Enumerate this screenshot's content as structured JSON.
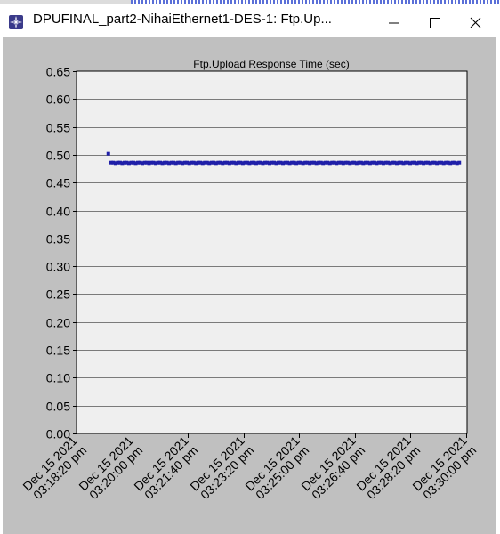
{
  "window": {
    "title": "DPUFINAL_part2-NihaiEthernet1-DES-1: Ftp.Up...",
    "icon": "star-app-icon",
    "controls": [
      "minimize-icon",
      "maximize-icon",
      "close-icon"
    ]
  },
  "chart_data": {
    "type": "scatter",
    "title": "Ftp.Upload Response Time (sec)",
    "xlabel": "",
    "ylabel": "",
    "ylim": [
      0,
      0.65
    ],
    "yticks": [
      "0.00",
      "0.05",
      "0.10",
      "0.15",
      "0.20",
      "0.25",
      "0.30",
      "0.35",
      "0.40",
      "0.45",
      "0.50",
      "0.55",
      "0.60",
      "0.65"
    ],
    "xticks": [
      [
        "Dec 15 2021",
        "03:18:20 pm"
      ],
      [
        "Dec 15 2021",
        "03:20:00 pm"
      ],
      [
        "Dec 15 2021",
        "03:21:40 pm"
      ],
      [
        "Dec 15 2021",
        "03:23:20 pm"
      ],
      [
        "Dec 15 2021",
        "03:25:00 pm"
      ],
      [
        "Dec 15 2021",
        "03:26:40 pm"
      ],
      [
        "Dec 15 2021",
        "03:28:20 pm"
      ],
      [
        "Dec 15 2021",
        "03:30:00 pm"
      ]
    ],
    "xlim_seconds_from_first_tick": [
      0,
      700
    ],
    "grid": true,
    "series": [
      {
        "color": "#1f1fa8",
        "points": [
          [
            57,
            0.502
          ],
          [
            62,
            0.486
          ],
          [
            66,
            0.486
          ],
          [
            70,
            0.485
          ],
          [
            74,
            0.486
          ],
          [
            78,
            0.486
          ],
          [
            82,
            0.485
          ],
          [
            86,
            0.486
          ],
          [
            90,
            0.486
          ],
          [
            94,
            0.485
          ],
          [
            98,
            0.486
          ],
          [
            102,
            0.486
          ],
          [
            106,
            0.485
          ],
          [
            110,
            0.486
          ],
          [
            114,
            0.486
          ],
          [
            118,
            0.485
          ],
          [
            122,
            0.486
          ],
          [
            126,
            0.486
          ],
          [
            130,
            0.485
          ],
          [
            134,
            0.486
          ],
          [
            138,
            0.486
          ],
          [
            142,
            0.485
          ],
          [
            146,
            0.486
          ],
          [
            150,
            0.486
          ],
          [
            154,
            0.485
          ],
          [
            158,
            0.486
          ],
          [
            162,
            0.486
          ],
          [
            166,
            0.485
          ],
          [
            170,
            0.486
          ],
          [
            174,
            0.486
          ],
          [
            178,
            0.485
          ],
          [
            182,
            0.486
          ],
          [
            186,
            0.486
          ],
          [
            190,
            0.485
          ],
          [
            194,
            0.486
          ],
          [
            198,
            0.486
          ],
          [
            202,
            0.485
          ],
          [
            206,
            0.486
          ],
          [
            210,
            0.486
          ],
          [
            214,
            0.485
          ],
          [
            218,
            0.486
          ],
          [
            222,
            0.486
          ],
          [
            226,
            0.485
          ],
          [
            230,
            0.486
          ],
          [
            234,
            0.486
          ],
          [
            238,
            0.485
          ],
          [
            242,
            0.486
          ],
          [
            246,
            0.486
          ],
          [
            250,
            0.485
          ],
          [
            254,
            0.486
          ],
          [
            258,
            0.486
          ],
          [
            262,
            0.485
          ],
          [
            266,
            0.486
          ],
          [
            270,
            0.486
          ],
          [
            274,
            0.485
          ],
          [
            278,
            0.486
          ],
          [
            282,
            0.486
          ],
          [
            286,
            0.485
          ],
          [
            290,
            0.486
          ],
          [
            294,
            0.486
          ],
          [
            298,
            0.485
          ],
          [
            302,
            0.486
          ],
          [
            306,
            0.486
          ],
          [
            310,
            0.485
          ],
          [
            314,
            0.486
          ],
          [
            318,
            0.486
          ],
          [
            322,
            0.485
          ],
          [
            326,
            0.486
          ],
          [
            330,
            0.486
          ],
          [
            334,
            0.485
          ],
          [
            338,
            0.486
          ],
          [
            342,
            0.486
          ],
          [
            346,
            0.485
          ],
          [
            350,
            0.486
          ],
          [
            354,
            0.486
          ],
          [
            358,
            0.485
          ],
          [
            362,
            0.486
          ],
          [
            366,
            0.486
          ],
          [
            370,
            0.485
          ],
          [
            374,
            0.486
          ],
          [
            378,
            0.486
          ],
          [
            382,
            0.485
          ],
          [
            386,
            0.486
          ],
          [
            390,
            0.486
          ],
          [
            394,
            0.485
          ],
          [
            398,
            0.486
          ],
          [
            402,
            0.486
          ],
          [
            406,
            0.485
          ],
          [
            410,
            0.486
          ],
          [
            414,
            0.486
          ],
          [
            418,
            0.485
          ],
          [
            422,
            0.486
          ],
          [
            426,
            0.486
          ],
          [
            430,
            0.485
          ],
          [
            434,
            0.486
          ],
          [
            438,
            0.486
          ],
          [
            442,
            0.485
          ],
          [
            446,
            0.486
          ],
          [
            450,
            0.486
          ],
          [
            454,
            0.485
          ],
          [
            458,
            0.486
          ],
          [
            462,
            0.486
          ],
          [
            466,
            0.485
          ],
          [
            470,
            0.486
          ],
          [
            474,
            0.486
          ],
          [
            478,
            0.485
          ],
          [
            482,
            0.486
          ],
          [
            486,
            0.486
          ],
          [
            490,
            0.485
          ],
          [
            494,
            0.486
          ],
          [
            498,
            0.486
          ],
          [
            502,
            0.485
          ],
          [
            506,
            0.486
          ],
          [
            510,
            0.486
          ],
          [
            514,
            0.485
          ],
          [
            518,
            0.486
          ],
          [
            522,
            0.486
          ],
          [
            526,
            0.485
          ],
          [
            530,
            0.486
          ],
          [
            534,
            0.486
          ],
          [
            538,
            0.485
          ],
          [
            542,
            0.486
          ],
          [
            546,
            0.486
          ],
          [
            550,
            0.485
          ],
          [
            554,
            0.486
          ],
          [
            558,
            0.486
          ],
          [
            562,
            0.485
          ],
          [
            566,
            0.486
          ],
          [
            570,
            0.486
          ],
          [
            574,
            0.485
          ],
          [
            578,
            0.486
          ],
          [
            582,
            0.486
          ],
          [
            586,
            0.485
          ],
          [
            590,
            0.486
          ],
          [
            594,
            0.486
          ],
          [
            598,
            0.485
          ],
          [
            602,
            0.486
          ],
          [
            606,
            0.486
          ],
          [
            610,
            0.485
          ],
          [
            614,
            0.486
          ],
          [
            618,
            0.486
          ],
          [
            622,
            0.485
          ],
          [
            626,
            0.486
          ],
          [
            630,
            0.486
          ],
          [
            634,
            0.485
          ],
          [
            638,
            0.486
          ],
          [
            642,
            0.486
          ],
          [
            646,
            0.485
          ],
          [
            650,
            0.486
          ],
          [
            654,
            0.486
          ],
          [
            658,
            0.485
          ],
          [
            662,
            0.486
          ],
          [
            666,
            0.486
          ],
          [
            670,
            0.485
          ],
          [
            674,
            0.486
          ],
          [
            678,
            0.486
          ],
          [
            682,
            0.485
          ],
          [
            686,
            0.486
          ]
        ]
      }
    ]
  }
}
